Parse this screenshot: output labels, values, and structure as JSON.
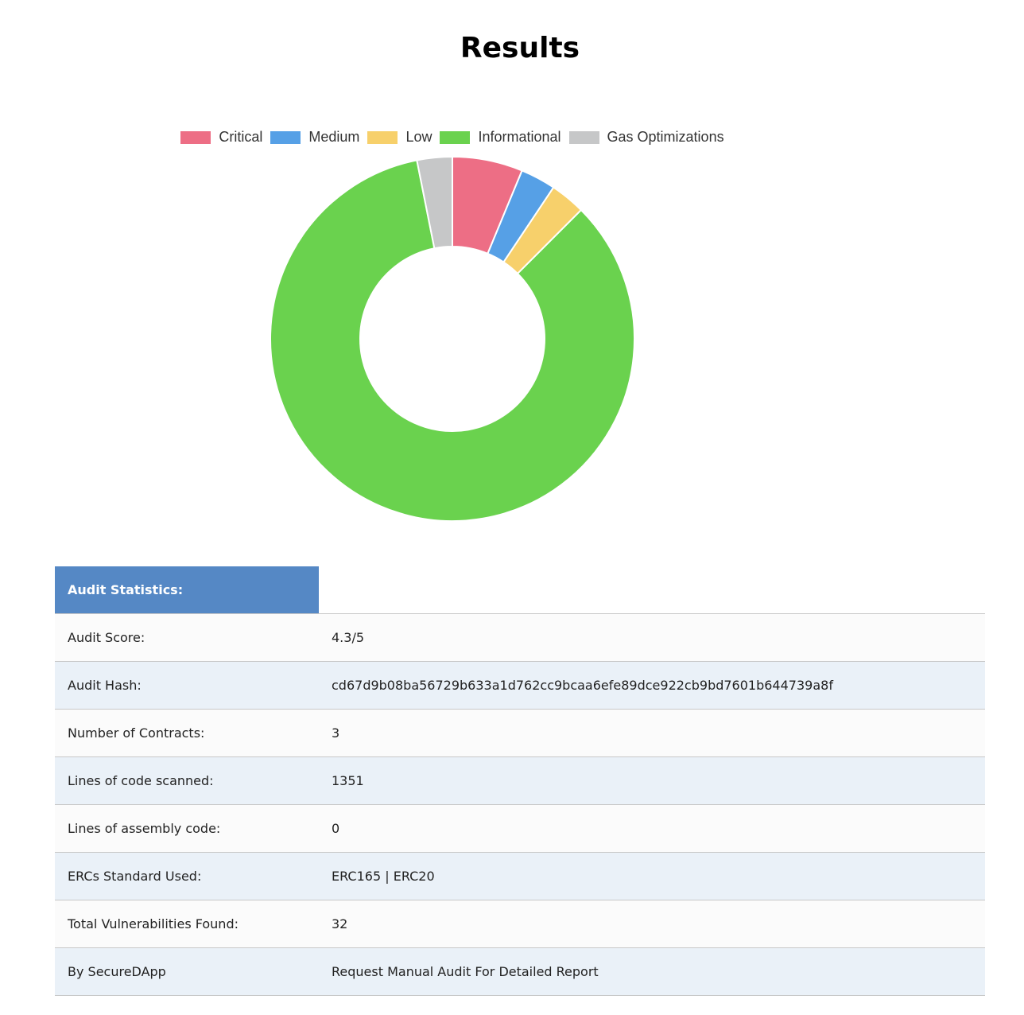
{
  "page": {
    "title": "Results"
  },
  "chart_data": {
    "type": "pie",
    "title": "",
    "series": [
      {
        "name": "Critical",
        "value": 2,
        "color": "#ed6e85"
      },
      {
        "name": "Medium",
        "value": 1,
        "color": "#56a0e6"
      },
      {
        "name": "Low",
        "value": 1,
        "color": "#f7d06b"
      },
      {
        "name": "Informational",
        "value": 27,
        "color": "#6ad24e"
      },
      {
        "name": "Gas Optimizations",
        "value": 1,
        "color": "#c6c7c8"
      }
    ],
    "legend_position": "top",
    "donut": true
  },
  "stats": {
    "header": "Audit Statistics:",
    "rows": [
      {
        "label": "Audit Score:",
        "value": "4.3/5"
      },
      {
        "label": "Audit Hash:",
        "value": "cd67d9b08ba56729b633a1d762cc9bcaa6efe89dce922cb9bd7601b644739a8f"
      },
      {
        "label": "Number of Contracts:",
        "value": "3"
      },
      {
        "label": "Lines of code scanned:",
        "value": "1351"
      },
      {
        "label": "Lines of assembly code:",
        "value": "0"
      },
      {
        "label": "ERCs Standard Used:",
        "value": "ERC165 | ERC20"
      },
      {
        "label": "Total Vulnerabilities Found:",
        "value": "32"
      },
      {
        "label": "By SecureDApp",
        "value": "Request Manual Audit For Detailed Report"
      }
    ]
  }
}
